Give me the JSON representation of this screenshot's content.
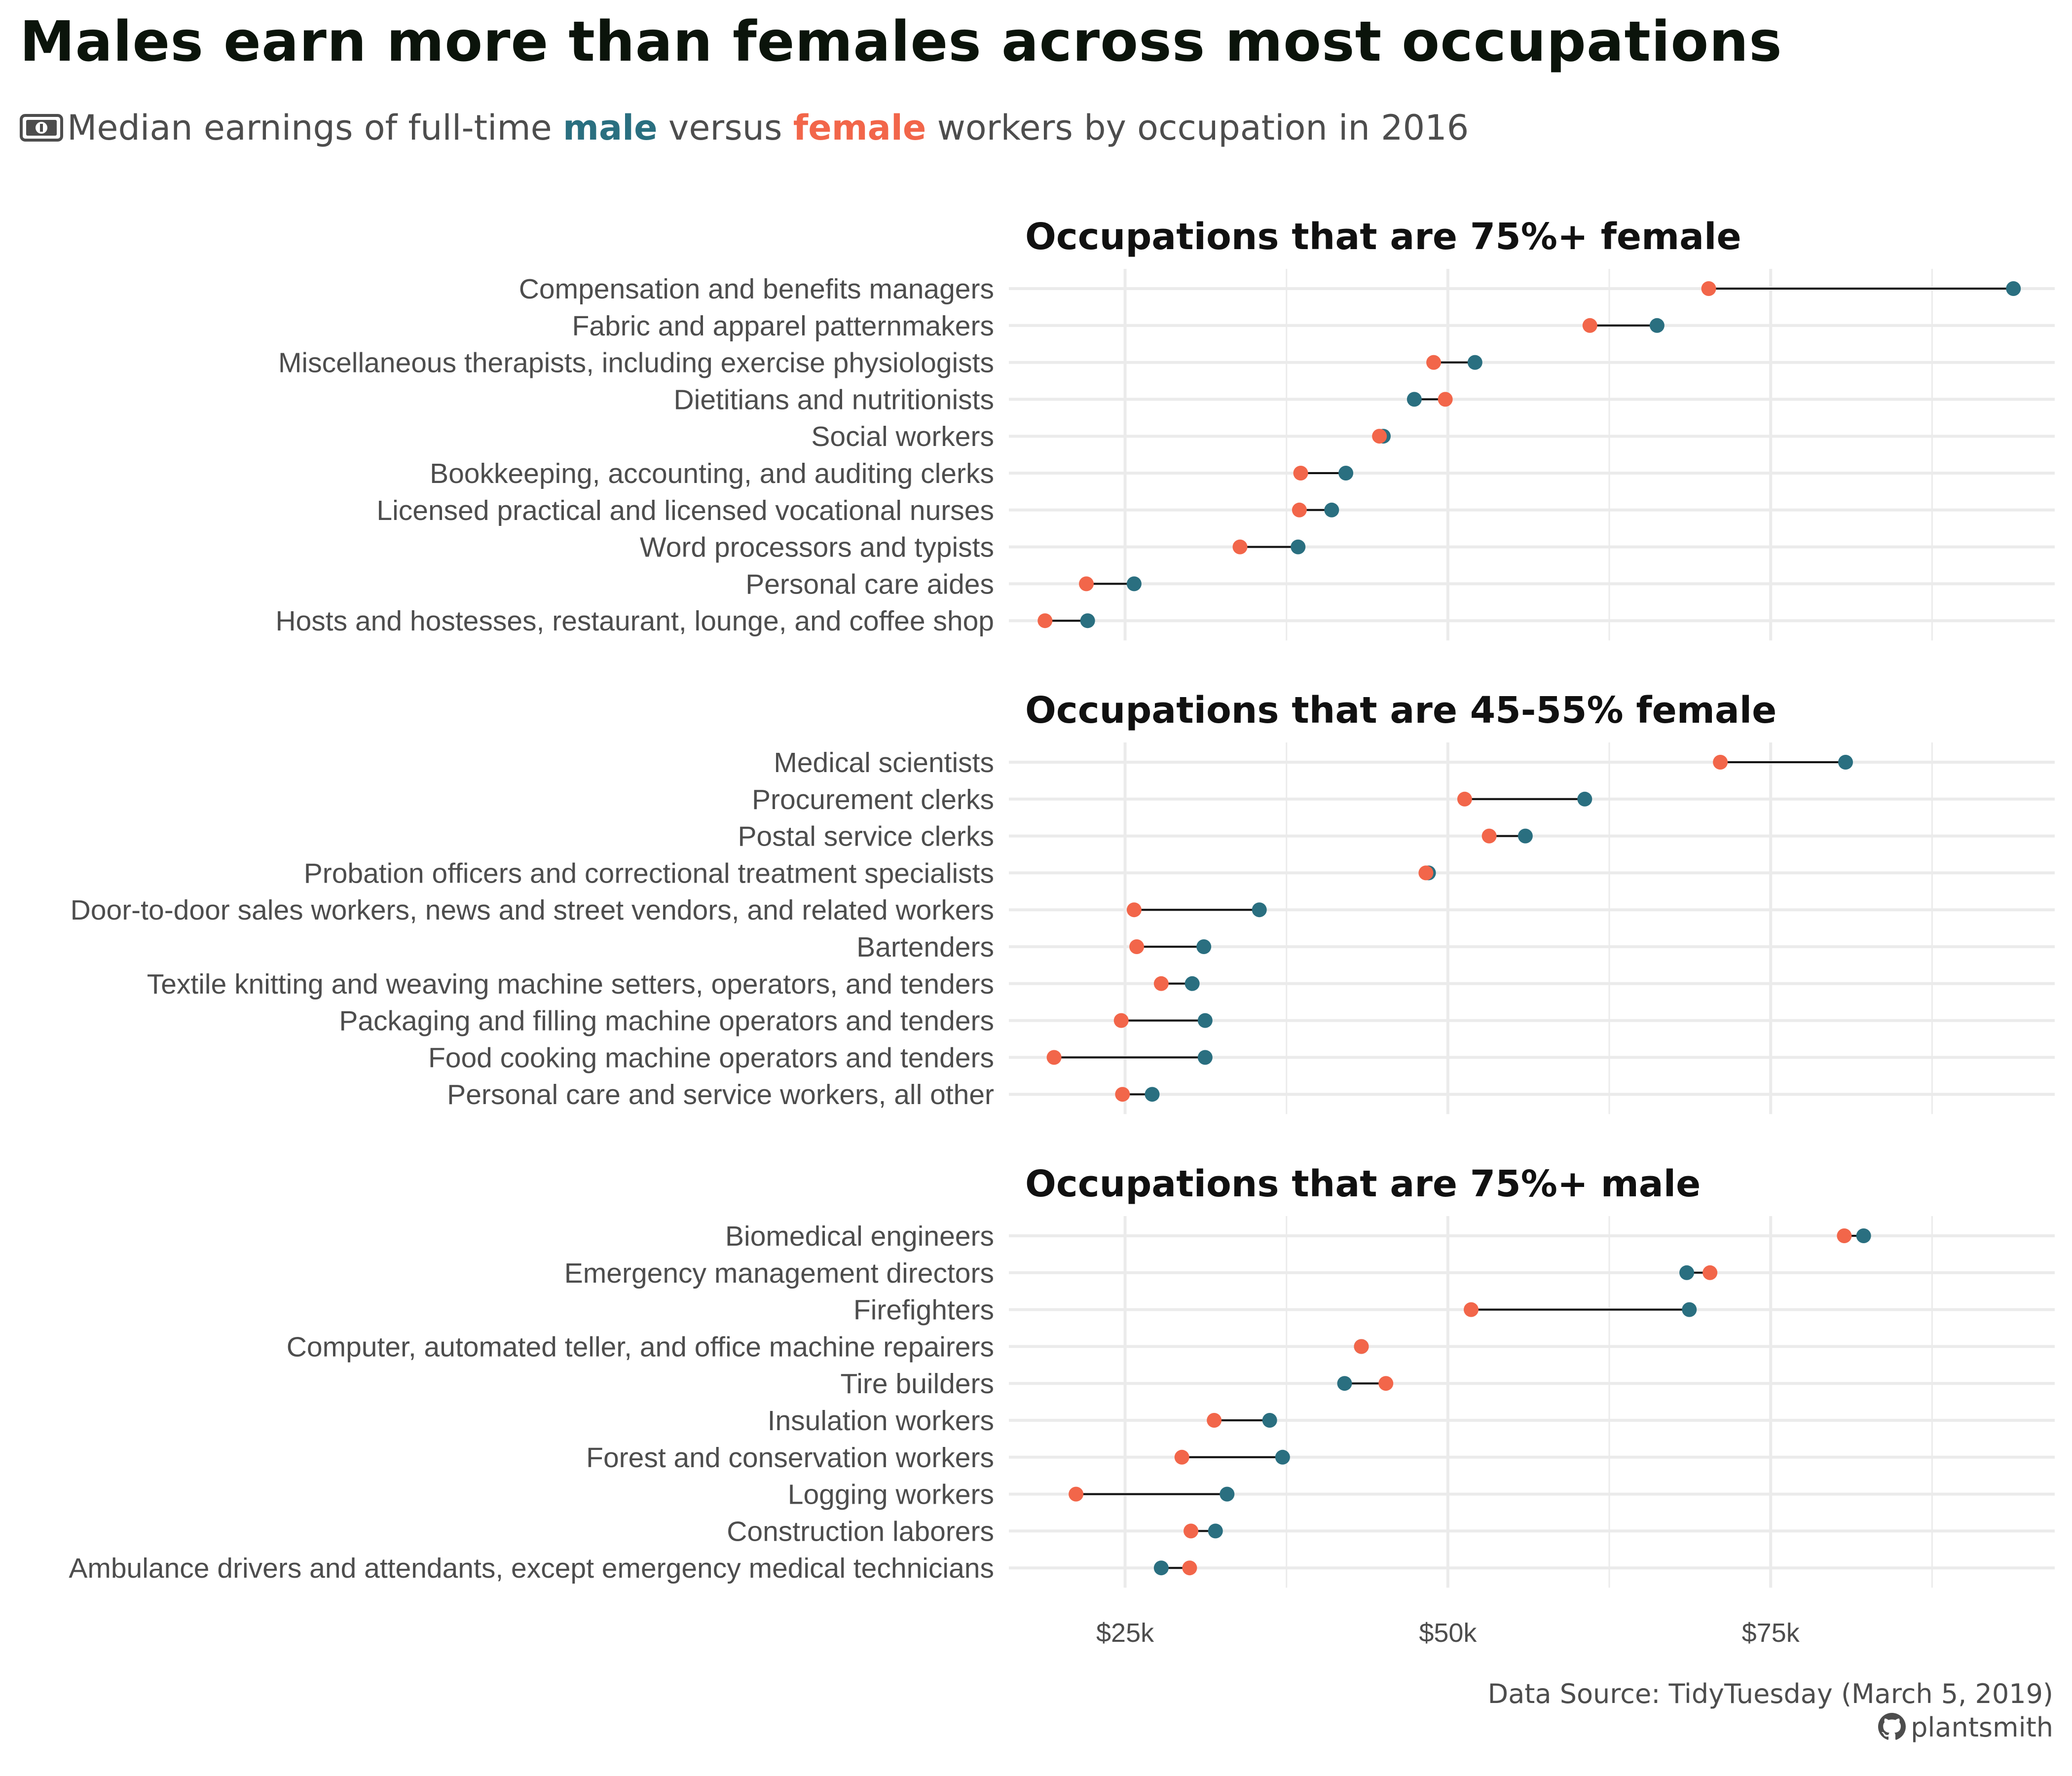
{
  "title": "Males earn more than females across most occupations",
  "subtitle": {
    "prefix": "Median earnings of full-time",
    "male_word": "male",
    "middle": "versus",
    "female_word": "female",
    "suffix": "workers by occupation in 2016"
  },
  "caption": {
    "source": "Data Source: TidyTuesday (March 5, 2019)",
    "author": "plantsmith"
  },
  "colors": {
    "male": "#2a6f80",
    "female": "#f2664a",
    "segment": "#111111",
    "grid": "#ebebeb"
  },
  "icons": {
    "subtitle": "money-icon",
    "caption": "github-icon"
  },
  "chart_data": {
    "type": "dumbbell",
    "xlim": [
      16000,
      97000
    ],
    "x_ticks": [
      25000,
      50000,
      75000
    ],
    "x_tick_labels": [
      "$25k",
      "$50k",
      "$75k"
    ],
    "panels": [
      {
        "title": "Occupations that are 75%+ female",
        "rows": [
          {
            "occupation": "Compensation and benefits managers",
            "female": 70200,
            "male": 93800
          },
          {
            "occupation": "Fabric and apparel patternmakers",
            "female": 61000,
            "male": 66200
          },
          {
            "occupation": "Miscellaneous therapists, including exercise physiologists",
            "female": 48900,
            "male": 52100
          },
          {
            "occupation": "Dietitians and nutritionists",
            "female": 49800,
            "male": 47400
          },
          {
            "occupation": "Social workers",
            "female": 44700,
            "male": 45000
          },
          {
            "occupation": "Bookkeeping, accounting, and auditing clerks",
            "female": 38600,
            "male": 42100
          },
          {
            "occupation": "Licensed practical and licensed vocational nurses",
            "female": 38500,
            "male": 41000
          },
          {
            "occupation": "Word processors and typists",
            "female": 33900,
            "male": 38400
          },
          {
            "occupation": "Personal care aides",
            "female": 22000,
            "male": 25700
          },
          {
            "occupation": "Hosts and hostesses, restaurant, lounge, and coffee shop",
            "female": 18800,
            "male": 22100
          }
        ]
      },
      {
        "title": "Occupations that are 45-55% female",
        "rows": [
          {
            "occupation": "Medical scientists",
            "female": 71100,
            "male": 80800
          },
          {
            "occupation": "Procurement clerks",
            "female": 51300,
            "male": 60600
          },
          {
            "occupation": "Postal service clerks",
            "female": 53200,
            "male": 56000
          },
          {
            "occupation": "Probation officers and correctional treatment specialists",
            "female": 48300,
            "male": 48500
          },
          {
            "occupation": "Door-to-door sales workers, news and street vendors, and related workers",
            "female": 25700,
            "male": 35400
          },
          {
            "occupation": "Bartenders",
            "female": 25900,
            "male": 31100
          },
          {
            "occupation": "Textile knitting and weaving machine setters, operators, and tenders",
            "female": 27800,
            "male": 30200
          },
          {
            "occupation": "Packaging and filling machine operators and tenders",
            "female": 24700,
            "male": 31200
          },
          {
            "occupation": "Food cooking machine operators and tenders",
            "female": 19500,
            "male": 31200
          },
          {
            "occupation": "Personal care and service workers, all other",
            "female": 24800,
            "male": 27100
          }
        ]
      },
      {
        "title": "Occupations that are 75%+ male",
        "rows": [
          {
            "occupation": "Biomedical engineers",
            "female": 80700,
            "male": 82200
          },
          {
            "occupation": "Emergency management directors",
            "female": 70300,
            "male": 68500
          },
          {
            "occupation": "Firefighters",
            "female": 51800,
            "male": 68700
          },
          {
            "occupation": "Computer, automated teller, and office machine repairers",
            "female": 43300,
            "male": 43300
          },
          {
            "occupation": "Tire builders",
            "female": 45200,
            "male": 42000
          },
          {
            "occupation": "Insulation workers",
            "female": 31900,
            "male": 36200
          },
          {
            "occupation": "Forest and conservation workers",
            "female": 29400,
            "male": 37200
          },
          {
            "occupation": "Logging workers",
            "female": 21200,
            "male": 32900
          },
          {
            "occupation": "Construction laborers",
            "female": 30100,
            "male": 32000
          },
          {
            "occupation": "Ambulance drivers and attendants, except emergency medical technicians",
            "female": 30000,
            "male": 27800
          }
        ]
      }
    ]
  }
}
